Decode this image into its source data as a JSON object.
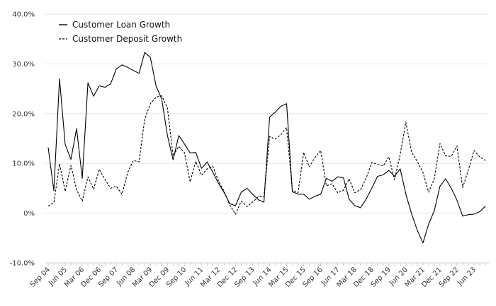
{
  "chart_data": {
    "type": "line",
    "title": "",
    "xlabel": "",
    "ylabel": "",
    "ylim": [
      -10,
      40
    ],
    "y_ticks": [
      "40.0%",
      "30.0%",
      "20.0%",
      "10.0%",
      "0%",
      "-10.0%"
    ],
    "y_tick_values": [
      40,
      30,
      20,
      10,
      0,
      -10
    ],
    "grid": "horizontal",
    "legend_position": "top-left",
    "x_tick_labels": [
      "Sep 04",
      "Jun 05",
      "Mar 06",
      "Dec 06",
      "Sep 07",
      "Jun 08",
      "Mar 09",
      "Dec 09",
      "Sep 10",
      "Jun 11",
      "Mar 12",
      "Dec 12",
      "Sep 13",
      "Jun 14",
      "Mar 15",
      "Dec 15",
      "Sep 16",
      "Jun 17",
      "Mar 18",
      "Dec 18",
      "Sep 19",
      "Jun 20",
      "Mar 21",
      "Dec 21",
      "Sep 22",
      "Jun 23"
    ],
    "x_tick_index": [
      0,
      3,
      6,
      9,
      12,
      15,
      18,
      21,
      24,
      27,
      30,
      33,
      36,
      39,
      42,
      45,
      48,
      51,
      54,
      57,
      60,
      63,
      66,
      69,
      72,
      75
    ],
    "x_count": 78,
    "series": [
      {
        "name": "Customer Loan Growth",
        "style": "solid",
        "color": "#000000",
        "values": [
          13.2,
          4.5,
          27.0,
          13.8,
          10.8,
          17.0,
          7.0,
          26.2,
          23.5,
          25.6,
          25.3,
          26.0,
          29.0,
          29.8,
          29.3,
          28.7,
          28.1,
          32.3,
          31.3,
          25.6,
          22.9,
          15.6,
          10.7,
          15.6,
          13.9,
          12.1,
          12.2,
          9.0,
          10.3,
          8.2,
          6.0,
          4.1,
          1.9,
          1.5,
          4.2,
          5.0,
          3.8,
          2.7,
          2.2,
          19.3,
          20.3,
          21.5,
          22.0,
          4.3,
          3.8,
          3.8,
          2.8,
          3.4,
          3.8,
          7.0,
          6.4,
          7.3,
          7.1,
          2.8,
          1.5,
          1.1,
          2.8,
          5.0,
          7.4,
          7.7,
          8.6,
          7.4,
          8.9,
          3.8,
          -0.1,
          -3.4,
          -6.0,
          -2.2,
          0.5,
          5.4,
          6.9,
          5.0,
          2.6,
          -0.6,
          -0.3,
          -0.2,
          0.3,
          1.4
        ]
      },
      {
        "name": "Customer Deposit Growth",
        "style": "dashed",
        "color": "#000000",
        "values": [
          1.4,
          2.1,
          9.9,
          4.4,
          9.6,
          4.7,
          2.4,
          7.3,
          4.8,
          8.8,
          6.8,
          5.0,
          5.4,
          3.8,
          8.2,
          10.6,
          10.3,
          18.9,
          22.0,
          23.3,
          23.6,
          21.1,
          11.5,
          13.4,
          12.2,
          6.3,
          10.4,
          7.6,
          8.9,
          9.4,
          6.4,
          4.4,
          1.6,
          -0.2,
          2.4,
          1.3,
          2.2,
          3.3,
          3.3,
          15.4,
          14.9,
          15.8,
          17.2,
          4.6,
          4.1,
          12.2,
          9.3,
          11.2,
          12.6,
          5.5,
          5.9,
          4.1,
          4.6,
          6.9,
          4.1,
          4.7,
          7.0,
          10.2,
          9.8,
          9.5,
          11.3,
          6.7,
          11.8,
          18.3,
          12.3,
          10.4,
          8.2,
          4.2,
          6.9,
          14.0,
          11.5,
          11.4,
          13.5,
          5.1,
          8.7,
          12.6,
          11.3,
          10.6
        ]
      }
    ]
  }
}
